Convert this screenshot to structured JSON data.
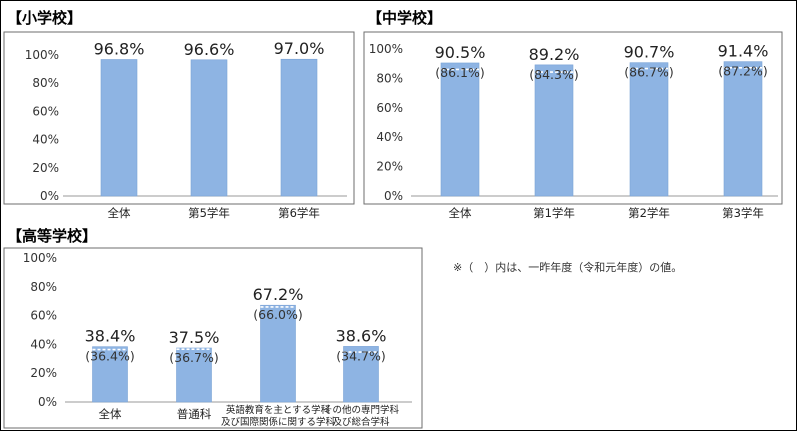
{
  "note": "※（　）内は、一昨年度（令和元年度）の値。",
  "chart_data": [
    {
      "type": "bar",
      "title": "【小学校】",
      "ylim": [
        0,
        100
      ],
      "yticks": [
        "0%",
        "20%",
        "40%",
        "60%",
        "80%",
        "100%"
      ],
      "categories": [
        "全体",
        "第5学年",
        "第6学年"
      ],
      "series": [
        {
          "values": [
            96.8,
            96.6,
            97.0
          ]
        }
      ],
      "labels": [
        "96.8%",
        "96.6%",
        "97.0%"
      ],
      "grid": false
    },
    {
      "type": "bar",
      "title": "【中学校】",
      "ylim": [
        0,
        100
      ],
      "yticks": [
        "0%",
        "20%",
        "40%",
        "60%",
        "80%",
        "100%"
      ],
      "categories": [
        "全体",
        "第1学年",
        "第2学年",
        "第3学年"
      ],
      "series": [
        {
          "values": [
            90.5,
            89.2,
            90.7,
            91.4
          ]
        }
      ],
      "previous_values": [
        86.1,
        84.3,
        86.7,
        87.2
      ],
      "labels": [
        "90.5%",
        "89.2%",
        "90.7%",
        "91.4%"
      ],
      "previous_labels": [
        "(86.1%)",
        "(84.3%)",
        "(86.7%)",
        "(87.2%)"
      ],
      "grid": false
    },
    {
      "type": "bar",
      "title": "【高等学校】",
      "ylim": [
        0,
        100
      ],
      "yticks": [
        "0%",
        "20%",
        "40%",
        "60%",
        "80%",
        "100%"
      ],
      "categories": [
        [
          "全体"
        ],
        [
          "普通科"
        ],
        [
          "英語教育を主とする学科",
          "及び国際関係に関する学科"
        ],
        [
          "その他の専門学科",
          "及び総合学科"
        ]
      ],
      "series": [
        {
          "values": [
            38.4,
            37.5,
            67.2,
            38.6
          ]
        }
      ],
      "previous_values": [
        36.4,
        36.7,
        66.0,
        34.7
      ],
      "labels": [
        "38.4%",
        "37.5%",
        "67.2%",
        "38.6%"
      ],
      "previous_labels": [
        "(36.4%)",
        "(36.7%)",
        "(66.0%)",
        "(34.7%)"
      ],
      "grid": false
    }
  ]
}
